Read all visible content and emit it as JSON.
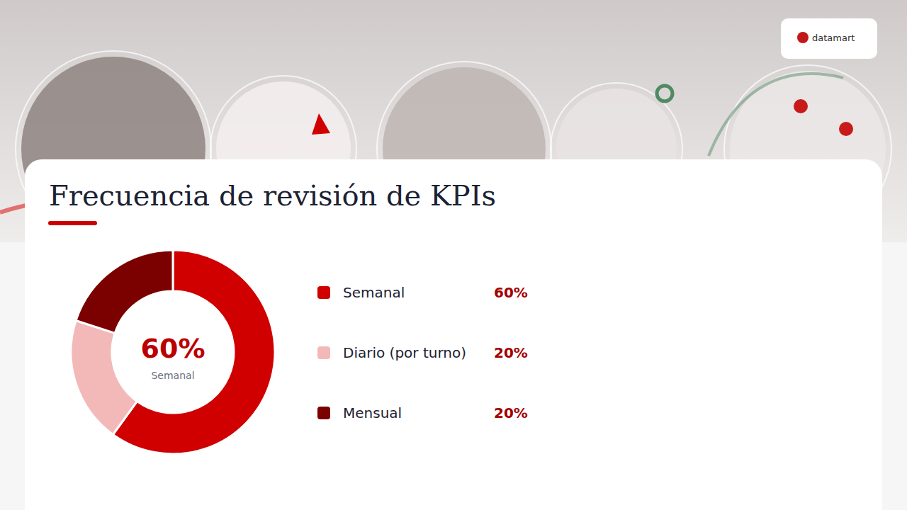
{
  "chart_data": {
    "type": "donut",
    "title": "Frecuencia de revisión de KPIs",
    "logo": "datamart",
    "categories": [
      "Semanal",
      "Diario (por turno)",
      "Mensual"
    ],
    "values": [
      60,
      20,
      20
    ],
    "value_labels": [
      "60%",
      "20%",
      "20%"
    ],
    "colors": [
      "#d00000",
      "#f3b9b9",
      "#7b0000"
    ],
    "center": {
      "value": 60,
      "label": "60%",
      "text": "Semanal"
    },
    "legend": "right"
  }
}
